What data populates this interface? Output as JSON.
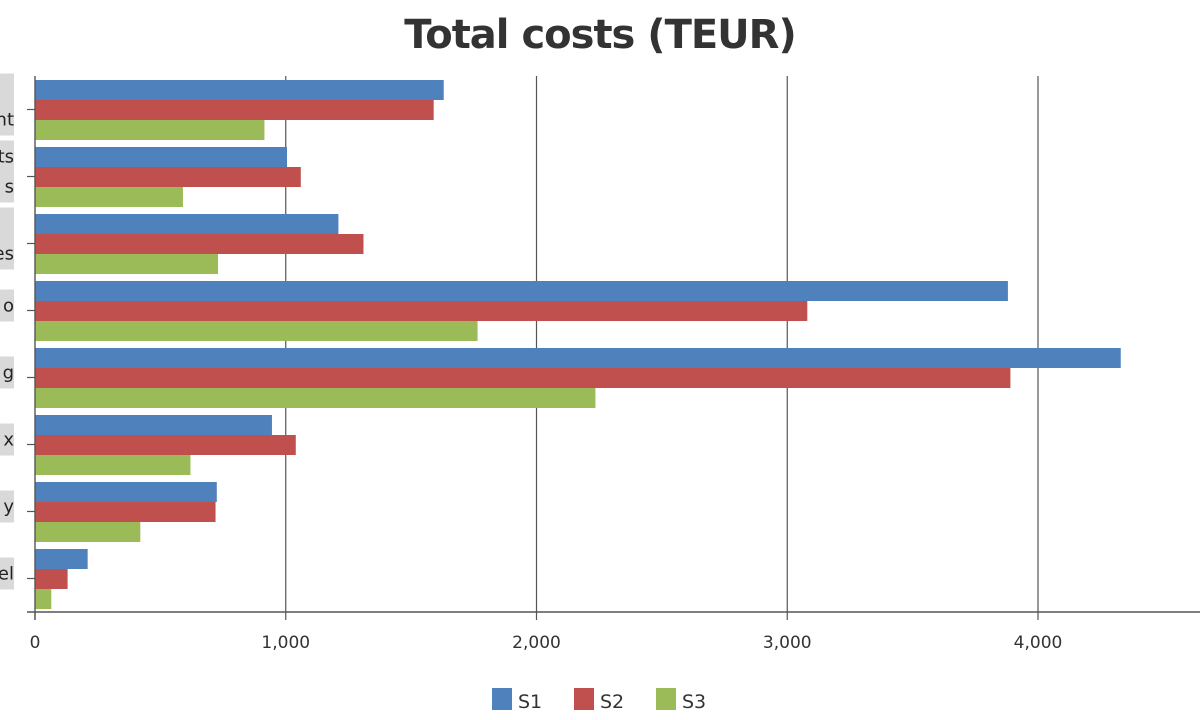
{
  "chart_data": {
    "type": "bar",
    "orientation": "horizontal",
    "title": "Total costs (TEUR)",
    "xlabel": "",
    "ylabel": "",
    "xlim": [
      0,
      4640
    ],
    "x_ticks": [
      0,
      1000,
      2000,
      3000,
      4000
    ],
    "x_tick_labels": [
      "0",
      "1,000",
      "2,000",
      "3,000",
      "4,000"
    ],
    "grid": "vertical",
    "legend_position": "bottom-center",
    "category_label_fragments": [
      [
        "",
        "nt"
      ],
      [
        "ts",
        "s"
      ],
      [
        "",
        "es"
      ],
      [
        "o"
      ],
      [
        "g"
      ],
      [
        "x"
      ],
      [
        "y"
      ],
      [
        "el"
      ]
    ],
    "series": [
      {
        "name": "S1",
        "color": "#4f81bd",
        "values": [
          1630,
          1005,
          1210,
          3880,
          4330,
          945,
          725,
          210
        ]
      },
      {
        "name": "S2",
        "color": "#c0504d",
        "values": [
          1590,
          1060,
          1310,
          3080,
          3890,
          1040,
          720,
          130
        ]
      },
      {
        "name": "S3",
        "color": "#9bbb59",
        "values": [
          915,
          590,
          730,
          1765,
          2235,
          620,
          420,
          65
        ]
      }
    ]
  }
}
